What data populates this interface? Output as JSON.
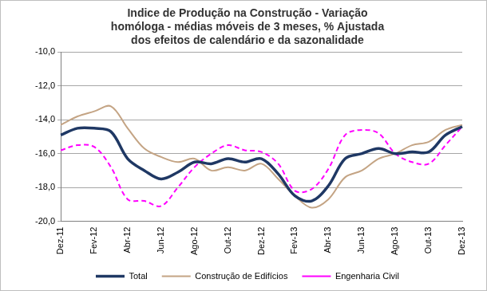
{
  "chart_data": {
    "type": "line",
    "title": [
      "Indice de Produção na Construção - Variação",
      "homóloga - médias móveis de 3 meses, % Ajustada",
      "dos efeitos de calendário e da sazonalidade"
    ],
    "categories": [
      "Dez-11",
      null,
      "Fev-12",
      null,
      "Abr-12",
      null,
      "Jun-12",
      null,
      "Ago-12",
      null,
      "Out-12",
      null,
      "Dez-12",
      null,
      "Fev-13",
      null,
      "Abr-13",
      null,
      "Jun-13",
      null,
      "Ago-13",
      null,
      "Out-13",
      null,
      "Dez-13"
    ],
    "series": [
      {
        "name": "Total",
        "color": "#1f3864",
        "line_style": "solid",
        "values": [
          -14.9,
          -14.5,
          -14.5,
          -14.7,
          -16.3,
          -17.0,
          -17.5,
          -17.1,
          -16.5,
          -16.6,
          -16.3,
          -16.5,
          -16.3,
          -17.2,
          -18.5,
          -18.8,
          -17.9,
          -16.3,
          -16.0,
          -15.7,
          -16.0,
          -15.9,
          -15.9,
          -14.9,
          -14.4
        ]
      },
      {
        "name": "Construção de Edifícios",
        "color": "#c4a484",
        "line_style": "solid",
        "values": [
          -14.3,
          -13.8,
          -13.5,
          -13.2,
          -14.5,
          -15.7,
          -16.2,
          -16.5,
          -16.3,
          -17.0,
          -16.8,
          -17.0,
          -16.6,
          -17.5,
          -18.5,
          -19.2,
          -18.7,
          -17.4,
          -17.0,
          -16.3,
          -16.0,
          -15.5,
          -15.3,
          -14.6,
          -14.3
        ]
      },
      {
        "name": "Engenharia Civil",
        "color": "#ff00ff",
        "line_style": "dashed",
        "values": [
          -15.8,
          -15.5,
          -15.6,
          -16.8,
          -18.7,
          -18.8,
          -19.1,
          -18.0,
          -16.8,
          -16.0,
          -15.5,
          -15.8,
          -15.9,
          -16.6,
          -18.2,
          -18.1,
          -16.9,
          -14.9,
          -14.6,
          -14.8,
          -16.0,
          -16.5,
          -16.6,
          -15.5,
          -14.4
        ]
      }
    ],
    "ylim": [
      -20,
      -10
    ],
    "yticks": [
      {
        "value": -20,
        "label": "-20,0"
      },
      {
        "value": -18,
        "label": "-18,0"
      },
      {
        "value": -16,
        "label": "-16,0"
      },
      {
        "value": -14,
        "label": "-14,0"
      },
      {
        "value": -12,
        "label": "-12,0"
      },
      {
        "value": -10,
        "label": "-10,0"
      }
    ],
    "grid": "y",
    "legend": "bottom"
  }
}
